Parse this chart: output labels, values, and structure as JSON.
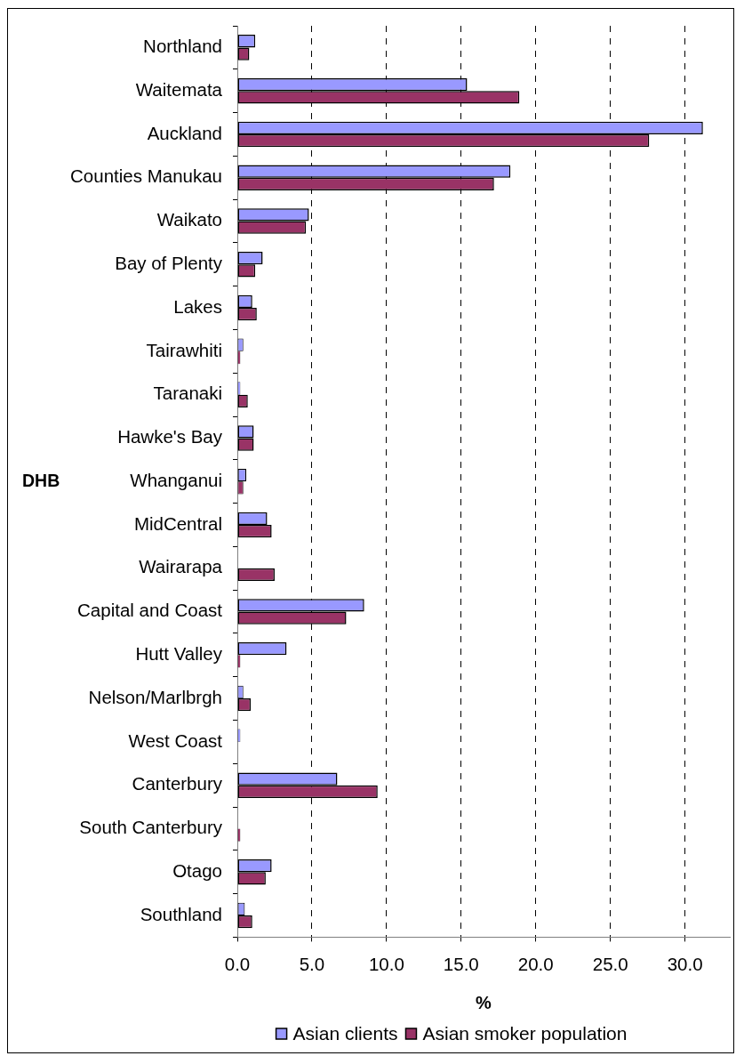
{
  "chart_data": {
    "type": "bar",
    "orientation": "horizontal",
    "ylabel": "DHB",
    "xlabel": "%",
    "categories": [
      "Northland",
      "Waitemata",
      "Auckland",
      "Counties Manukau",
      "Waikato",
      "Bay of Plenty",
      "Lakes",
      "Tairawhiti",
      "Taranaki",
      "Hawke's Bay",
      "Whanganui",
      "MidCentral",
      "Wairarapa",
      "Capital and Coast",
      "Hutt Valley",
      "Nelson/Marlbrgh",
      "West Coast",
      "Canterbury",
      "South Canterbury",
      "Otago",
      "Southland"
    ],
    "series": [
      {
        "name": "Asian clients",
        "color": "#9999ff",
        "values": [
          1.2,
          15.4,
          31.2,
          18.3,
          4.8,
          1.7,
          1.0,
          0.4,
          0.2,
          1.1,
          0.6,
          2.0,
          null,
          8.5,
          3.3,
          0.4,
          0.2,
          6.7,
          null,
          2.3,
          0.5
        ]
      },
      {
        "name": "Asian smoker population",
        "color": "#993366",
        "values": [
          0.8,
          18.9,
          27.6,
          17.2,
          4.6,
          1.2,
          1.3,
          0.2,
          0.7,
          1.1,
          0.4,
          2.3,
          2.5,
          7.3,
          0.2,
          0.9,
          null,
          9.4,
          0.2,
          1.9,
          1.0
        ]
      }
    ],
    "xlim": [
      0,
      33
    ],
    "xticks": [
      {
        "value": 0,
        "label": "0.0"
      },
      {
        "value": 5,
        "label": "5.0"
      },
      {
        "value": 10,
        "label": "10.0"
      },
      {
        "value": 15,
        "label": "15.0"
      },
      {
        "value": 20,
        "label": "20.0"
      },
      {
        "value": 25,
        "label": "25.0"
      },
      {
        "value": 30,
        "label": "30.0"
      }
    ],
    "grid": "x",
    "legend": "bottom"
  }
}
